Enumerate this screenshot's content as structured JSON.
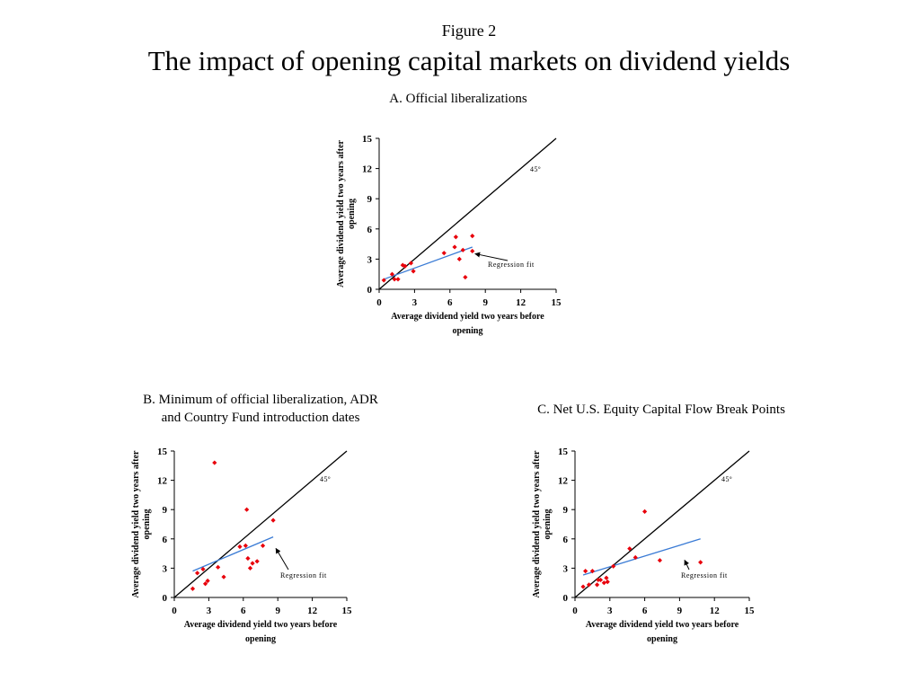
{
  "figure": {
    "label": "Figure 2",
    "title": "The impact of opening capital markets on dividend yields"
  },
  "chart_data": [
    {
      "type": "scatter",
      "title": "A. Official liberalizations",
      "xlabel": [
        "Average dividend yield two years before",
        "opening"
      ],
      "ylabel": [
        "Average dividend yield two years after",
        "opening"
      ],
      "xlim": [
        0,
        15
      ],
      "ylim": [
        0,
        15
      ],
      "ticks": [
        0,
        3,
        6,
        9,
        12,
        15
      ],
      "tick_labels": [
        "0",
        "3",
        "6",
        "9",
        "12",
        "15"
      ],
      "grid": false,
      "points_color": "#e8000b",
      "points": [
        [
          0.4,
          0.9
        ],
        [
          1.1,
          1.5
        ],
        [
          1.3,
          1.0
        ],
        [
          1.6,
          1.0
        ],
        [
          2.0,
          2.4
        ],
        [
          2.2,
          2.3
        ],
        [
          2.7,
          2.6
        ],
        [
          2.9,
          1.8
        ],
        [
          5.5,
          3.6
        ],
        [
          6.4,
          4.2
        ],
        [
          6.5,
          5.2
        ],
        [
          6.8,
          3.0
        ],
        [
          7.1,
          3.9
        ],
        [
          7.3,
          1.2
        ],
        [
          7.9,
          5.3
        ],
        [
          7.9,
          3.8
        ]
      ],
      "regression": {
        "from": [
          0.4,
          1.0
        ],
        "to": [
          7.9,
          4.2
        ],
        "color": "#3a7bd5",
        "label": "Regression fit"
      },
      "reference_line": {
        "label": "45º",
        "label_sup": "o"
      }
    },
    {
      "type": "scatter",
      "title": [
        "B. Minimum of official liberalization, ADR",
        "and Country Fund introduction dates"
      ],
      "xlabel": [
        "Average dividend yield two years before",
        "opening"
      ],
      "ylabel": [
        "Average dividend yield two years after",
        "opening"
      ],
      "xlim": [
        0,
        15
      ],
      "ylim": [
        0,
        15
      ],
      "ticks": [
        0,
        3,
        6,
        9,
        12,
        15
      ],
      "tick_labels": [
        "0",
        "3",
        "6",
        "9",
        "12",
        "15"
      ],
      "grid": false,
      "points_color": "#e8000b",
      "points": [
        [
          1.6,
          0.9
        ],
        [
          2.0,
          2.5
        ],
        [
          2.5,
          2.9
        ],
        [
          2.7,
          1.4
        ],
        [
          2.9,
          1.7
        ],
        [
          3.5,
          13.8
        ],
        [
          3.8,
          3.1
        ],
        [
          4.3,
          2.1
        ],
        [
          5.7,
          5.2
        ],
        [
          6.2,
          5.3
        ],
        [
          6.3,
          9.0
        ],
        [
          6.4,
          4.0
        ],
        [
          6.6,
          3.0
        ],
        [
          6.8,
          3.5
        ],
        [
          7.2,
          3.7
        ],
        [
          7.7,
          5.3
        ],
        [
          8.6,
          7.9
        ]
      ],
      "regression": {
        "from": [
          1.6,
          2.7
        ],
        "to": [
          8.6,
          6.2
        ],
        "color": "#3a7bd5",
        "label": "Regression fit"
      },
      "reference_line": {
        "label": "45º",
        "label_sup": "o"
      }
    },
    {
      "type": "scatter",
      "title": "C. Net U.S. Equity Capital Flow Break Points",
      "xlabel": [
        "Average dividend yield two years before",
        "opening"
      ],
      "ylabel": [
        "Average dividend yield two years after",
        "opening"
      ],
      "xlim": [
        0,
        15
      ],
      "ylim": [
        0,
        15
      ],
      "ticks": [
        0,
        3,
        6,
        9,
        12,
        15
      ],
      "tick_labels": [
        "0",
        "3",
        "6",
        "9",
        "12",
        "15"
      ],
      "grid": false,
      "points_color": "#e8000b",
      "points": [
        [
          0.7,
          1.1
        ],
        [
          0.9,
          2.7
        ],
        [
          1.2,
          1.3
        ],
        [
          1.5,
          2.7
        ],
        [
          1.9,
          1.3
        ],
        [
          2.0,
          1.8
        ],
        [
          2.2,
          1.8
        ],
        [
          2.5,
          1.5
        ],
        [
          2.7,
          2.0
        ],
        [
          2.8,
          1.6
        ],
        [
          3.3,
          3.2
        ],
        [
          4.7,
          5.0
        ],
        [
          5.2,
          4.1
        ],
        [
          6.0,
          8.8
        ],
        [
          7.3,
          3.8
        ],
        [
          10.8,
          3.6
        ]
      ],
      "regression": {
        "from": [
          0.7,
          2.3
        ],
        "to": [
          10.8,
          6.0
        ],
        "color": "#3a7bd5",
        "label": "Regression fit"
      },
      "reference_line": {
        "label": "45º",
        "label_sup": "o"
      }
    }
  ]
}
